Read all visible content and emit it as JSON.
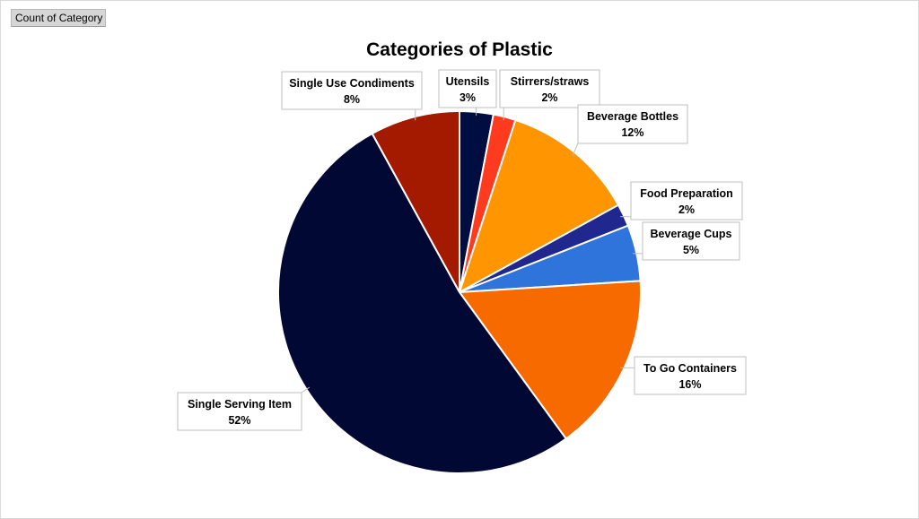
{
  "pivot_field_button": "Count of Category",
  "chart_data": {
    "type": "pie",
    "title": "Categories of Plastic",
    "slices": [
      {
        "label": "Utensils",
        "value": 3,
        "display": "3%",
        "color": "#000D40"
      },
      {
        "label": "Stirrers/straws",
        "value": 2,
        "display": "2%",
        "color": "#FF3B1F"
      },
      {
        "label": "Beverage Bottles",
        "value": 12,
        "display": "12%",
        "color": "#FF9500"
      },
      {
        "label": "Food Preparation",
        "value": 2,
        "display": "2%",
        "color": "#20288F"
      },
      {
        "label": "Beverage Cups",
        "value": 5,
        "display": "5%",
        "color": "#2E74DB"
      },
      {
        "label": "To Go Containers",
        "value": 16,
        "display": "16%",
        "color": "#F66A00"
      },
      {
        "label": "Single Serving Item",
        "value": 52,
        "display": "52%",
        "color": "#000833"
      },
      {
        "label": "Single Use Condiments",
        "value": 8,
        "display": "8%",
        "color": "#A31A00"
      }
    ],
    "legend": "none",
    "data_labels": "callouts"
  }
}
